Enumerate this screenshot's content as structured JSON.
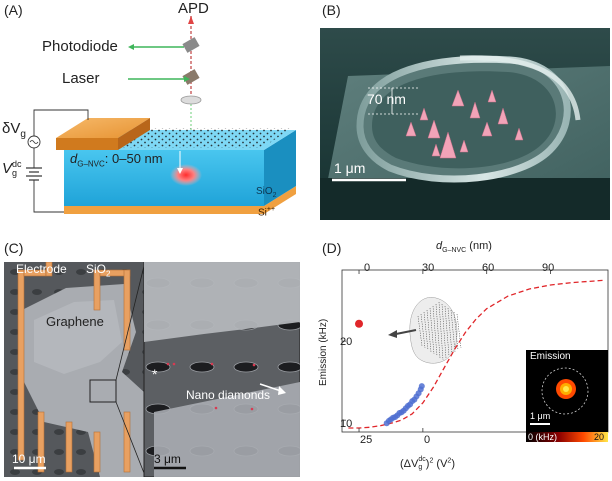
{
  "panels": {
    "a": {
      "letter": "(A)",
      "apd": "APD",
      "photodiode": "Photodiode",
      "laser": "Laser",
      "delta_vg_sym": "δV",
      "delta_vg_sub": "g",
      "vgdc_sym": "V",
      "vgdc_sup": "dc",
      "vgdc_sub": "g",
      "d_sym": "d",
      "d_sub": "G–NVC",
      "d_range": ": 0–50 nm",
      "sio2": "SiO",
      "sio2_sub": "2",
      "si": "Si",
      "si_sup": "++"
    },
    "b": {
      "letter": "(B)",
      "height_label": "70 nm",
      "scale_label": "1 μm"
    },
    "c": {
      "letter": "(C)",
      "electrode": "Electrode",
      "sio2": "SiO",
      "sio2_sub": "2",
      "graphene": "Graphene",
      "star": "*",
      "nanodiamonds": "Nano diamonds",
      "scale_left": "10 μm",
      "scale_right": "3 μm"
    },
    "d": {
      "letter": "(D)",
      "inset_title": "Emission",
      "inset_scale": "1 μm",
      "colorbar_min": "0 (kHz)",
      "colorbar_max": "20"
    }
  },
  "chart_data": {
    "type": "scatter",
    "top_axis": {
      "label_sym": "d",
      "label_sub": "G–NVC",
      "label_unit": " (nm)",
      "ticks": [
        0,
        30,
        60,
        90
      ],
      "range": [
        -8,
        117
      ]
    },
    "bottom_axis": {
      "label_pre": "(ΔV",
      "label_sup": "dc",
      "label_sub": "g",
      "label_post": ")",
      "label_sq": "2",
      "label_unit": " (V",
      "label_unit_sq": "2",
      "label_unit_close": ")",
      "ticks": [
        "25",
        "0"
      ]
    },
    "y_axis": {
      "label": "Emission (kHz)",
      "ticks": [
        10,
        20
      ],
      "range": [
        8.5,
        29
      ]
    },
    "fit_curve": {
      "style": "dashed",
      "color": "#e0262a",
      "x": [
        -5,
        0,
        5,
        10,
        15,
        20,
        25,
        30,
        35,
        40,
        45,
        50,
        55,
        60,
        70,
        80,
        90,
        100,
        110,
        115
      ],
      "y": [
        9.0,
        9.0,
        9.1,
        9.3,
        9.6,
        10.0,
        10.8,
        12.2,
        14.2,
        16.6,
        19.0,
        21.1,
        22.8,
        24.1,
        25.7,
        26.6,
        27.1,
        27.4,
        27.6,
        27.7
      ]
    },
    "points": {
      "color": "#4f6fd1",
      "x": [
        13,
        14,
        15,
        16,
        17,
        18,
        19,
        20,
        21,
        22,
        23,
        24,
        25,
        26,
        27,
        28,
        29,
        29.5
      ],
      "y": [
        9.6,
        9.9,
        10.1,
        10.3,
        10.4,
        10.6,
        10.9,
        11.0,
        11.2,
        11.5,
        11.8,
        12.0,
        12.4,
        12.6,
        13.0,
        13.4,
        13.9,
        14.3
      ]
    },
    "isolated_point": {
      "x": 0,
      "y": 22.2,
      "color": "#e0262a"
    }
  }
}
